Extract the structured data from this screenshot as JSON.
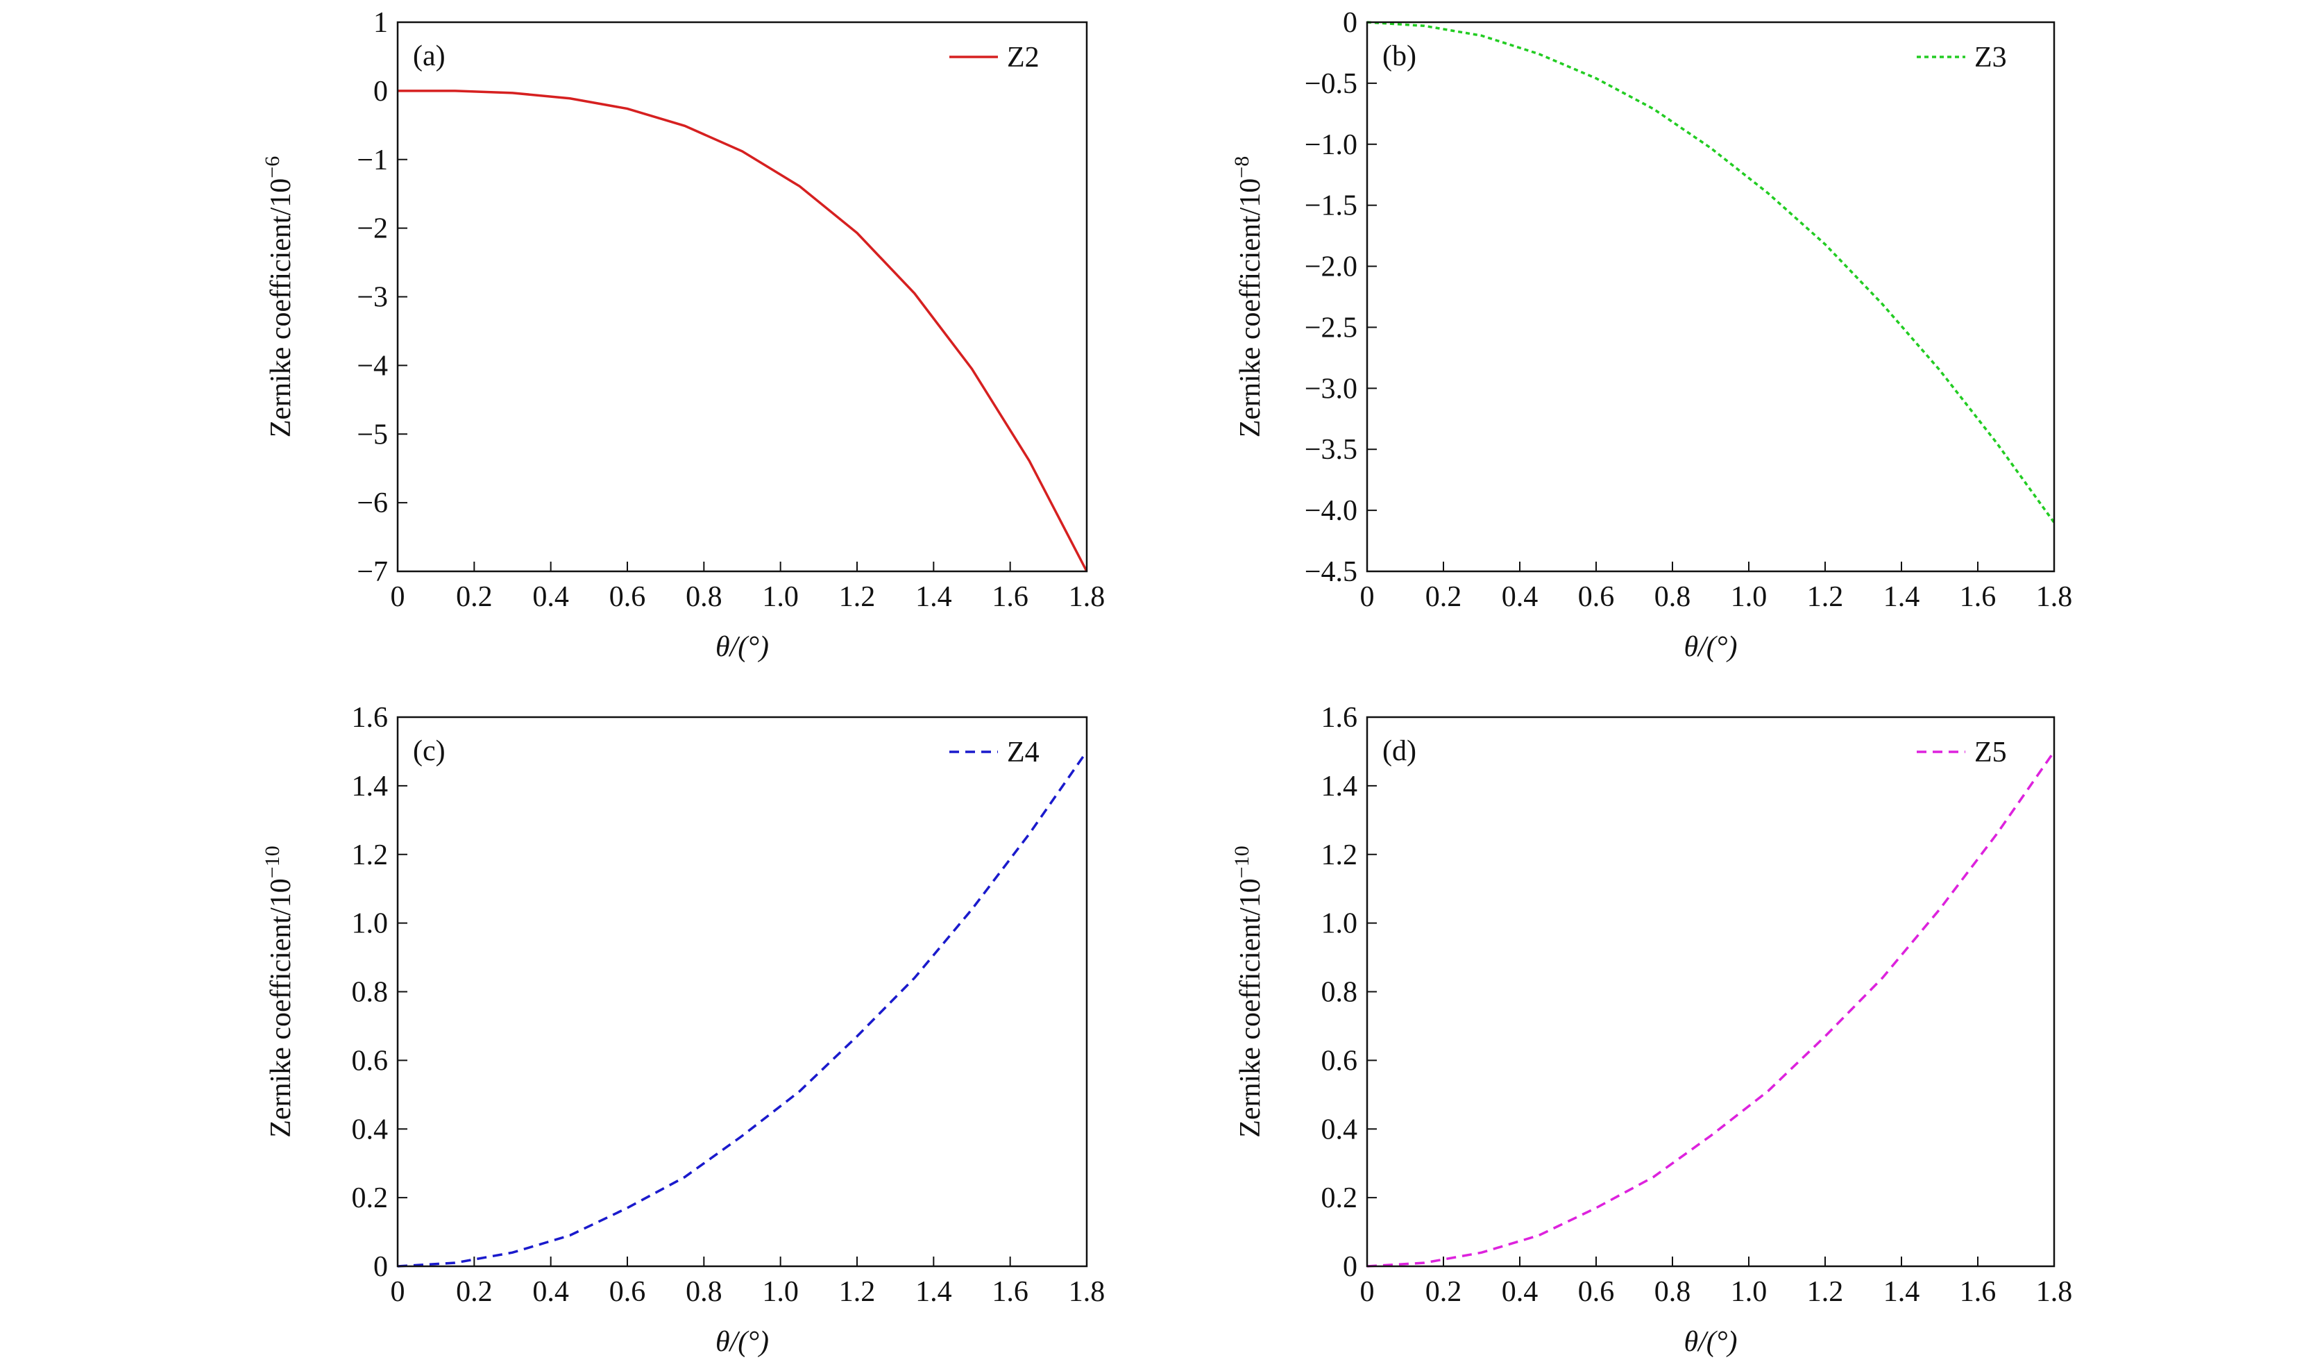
{
  "chart_data": [
    {
      "type": "line",
      "panel_label": "(a)",
      "xlabel": "θ/(°)",
      "ylabel": "Zernike coefficient/10",
      "ylabel_power": "−6",
      "x": [
        0,
        0.15,
        0.3,
        0.45,
        0.6,
        0.75,
        0.9,
        1.05,
        1.2,
        1.35,
        1.5,
        1.65,
        1.8
      ],
      "series": [
        {
          "name": "Z2",
          "color": "#d62020",
          "line_style": "solid",
          "values": [
            0,
            0,
            -0.03,
            -0.11,
            -0.26,
            -0.51,
            -0.88,
            -1.39,
            -2.07,
            -2.95,
            -4.05,
            -5.39,
            -7.0
          ]
        }
      ],
      "xlim": [
        0,
        1.8
      ],
      "xticks": [
        0,
        0.2,
        0.4,
        0.6,
        0.8,
        {
          "value": 1,
          "label": "1.0"
        },
        1.2,
        1.4,
        1.6,
        1.8
      ],
      "ylim": [
        -7,
        1
      ],
      "yticks": [
        {
          "value": -7,
          "label": "−7"
        },
        {
          "value": -6,
          "label": "−6"
        },
        {
          "value": -5,
          "label": "−5"
        },
        {
          "value": -4,
          "label": "−4"
        },
        {
          "value": -3,
          "label": "−3"
        },
        {
          "value": -2,
          "label": "−2"
        },
        {
          "value": -1,
          "label": "−1"
        },
        0,
        1
      ],
      "legend": "upper right"
    },
    {
      "type": "line",
      "panel_label": "(b)",
      "xlabel": "θ/(°)",
      "ylabel": "Zernike coefficient/10",
      "ylabel_power": "−8",
      "x": [
        0,
        0.15,
        0.3,
        0.45,
        0.6,
        0.75,
        0.9,
        1.05,
        1.2,
        1.35,
        1.5,
        1.65,
        1.8
      ],
      "series": [
        {
          "name": "Z3",
          "color": "#22cc22",
          "line_style": "dotted",
          "values": [
            0,
            -0.03,
            -0.11,
            -0.26,
            -0.46,
            -0.71,
            -1.03,
            -1.4,
            -1.82,
            -2.31,
            -2.85,
            -3.45,
            -4.1
          ]
        }
      ],
      "xlim": [
        0,
        1.8
      ],
      "xticks": [
        0,
        0.2,
        0.4,
        0.6,
        0.8,
        {
          "value": 1,
          "label": "1.0"
        },
        1.2,
        1.4,
        1.6,
        1.8
      ],
      "ylim": [
        -4.5,
        0
      ],
      "yticks": [
        {
          "value": -4.5,
          "label": "−4.5"
        },
        {
          "value": -4,
          "label": "−4.0"
        },
        {
          "value": -3.5,
          "label": "−3.5"
        },
        {
          "value": -3,
          "label": "−3.0"
        },
        {
          "value": -2.5,
          "label": "−2.5"
        },
        {
          "value": -2,
          "label": "−2.0"
        },
        {
          "value": -1.5,
          "label": "−1.5"
        },
        {
          "value": -1,
          "label": "−1.0"
        },
        {
          "value": -0.5,
          "label": "−0.5"
        },
        0
      ],
      "legend": "upper right"
    },
    {
      "type": "line",
      "panel_label": "(c)",
      "xlabel": "θ/(°)",
      "ylabel": "Zernike coefficient/10",
      "ylabel_power": "−10",
      "x": [
        0,
        0.15,
        0.3,
        0.45,
        0.6,
        0.75,
        0.9,
        1.05,
        1.2,
        1.35,
        1.5,
        1.65,
        1.8
      ],
      "series": [
        {
          "name": "Z4",
          "color": "#1a1acc",
          "line_style": "dashed",
          "values": [
            0,
            0.01,
            0.04,
            0.09,
            0.17,
            0.26,
            0.38,
            0.51,
            0.67,
            0.84,
            1.04,
            1.26,
            1.5
          ]
        }
      ],
      "xlim": [
        0,
        1.8
      ],
      "xticks": [
        0,
        0.2,
        0.4,
        0.6,
        0.8,
        {
          "value": 1,
          "label": "1.0"
        },
        1.2,
        1.4,
        1.6,
        1.8
      ],
      "ylim": [
        0,
        1.6
      ],
      "yticks": [
        0,
        0.2,
        0.4,
        0.6,
        0.8,
        {
          "value": 1,
          "label": "1.0"
        },
        1.2,
        1.4,
        1.6
      ],
      "legend": "upper right"
    },
    {
      "type": "line",
      "panel_label": "(d)",
      "xlabel": "θ/(°)",
      "ylabel": "Zernike coefficient/10",
      "ylabel_power": "−10",
      "x": [
        0,
        0.15,
        0.3,
        0.45,
        0.6,
        0.75,
        0.9,
        1.05,
        1.2,
        1.35,
        1.5,
        1.65,
        1.8
      ],
      "series": [
        {
          "name": "Z5",
          "color": "#dd22dd",
          "line_style": "dashed",
          "values": [
            0,
            0.01,
            0.04,
            0.09,
            0.17,
            0.26,
            0.38,
            0.51,
            0.67,
            0.84,
            1.04,
            1.26,
            1.5
          ]
        }
      ],
      "xlim": [
        0,
        1.8
      ],
      "xticks": [
        0,
        0.2,
        0.4,
        0.6,
        0.8,
        {
          "value": 1,
          "label": "1.0"
        },
        1.2,
        1.4,
        1.6,
        1.8
      ],
      "ylim": [
        0,
        1.6
      ],
      "yticks": [
        0,
        0.2,
        0.4,
        0.6,
        0.8,
        {
          "value": 1,
          "label": "1.0"
        },
        1.2,
        1.4,
        1.6
      ],
      "legend": "upper right"
    }
  ]
}
